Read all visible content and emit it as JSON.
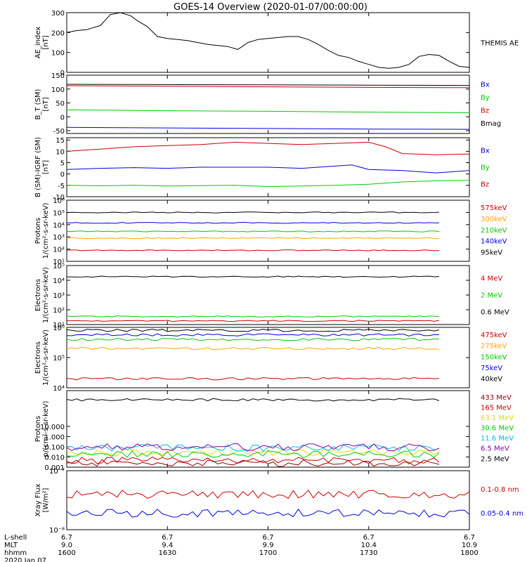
{
  "title": "GOES-14 Overview (2020-01-07/00:00:00)",
  "colors": {
    "black": "#000000",
    "red": "#cc0000",
    "green": "#00cc00",
    "blue": "#0000dd",
    "orange": "#ffa500",
    "cyan": "#00bbee",
    "yellow": "#dddd00",
    "purple": "#8800aa",
    "darkred": "#990000"
  },
  "x_axis": {
    "row_labels": [
      "L-shell",
      "MLT",
      "hhmm",
      "2020 Jan 07"
    ],
    "ticks": [
      {
        "time": "1600",
        "lshell": "6.7",
        "mlt": "9.0"
      },
      {
        "time": "1630",
        "lshell": "6.7",
        "mlt": "9.4"
      },
      {
        "time": "1700",
        "lshell": "6.7",
        "mlt": "9.9"
      },
      {
        "time": "1730",
        "lshell": "6.7",
        "mlt": "10.4"
      },
      {
        "time": "1800",
        "lshell": "6.7",
        "mlt": "10.9"
      }
    ]
  },
  "chart_data": [
    {
      "type": "line",
      "ylabel": "AE_index",
      "yunit": "[nT]",
      "ylim": [
        0,
        300
      ],
      "yticks": [
        "0",
        "100",
        "200",
        "300"
      ],
      "xlim_minutes": [
        0,
        120
      ],
      "series": [
        {
          "name": "THEMIS AE",
          "color": "black",
          "x": [
            0,
            3,
            6,
            10,
            13,
            16,
            19,
            21,
            24,
            27,
            30,
            33,
            36,
            39,
            42,
            45,
            48,
            51,
            54,
            57,
            60,
            63,
            66,
            69,
            72,
            75,
            78,
            81,
            84,
            87,
            90,
            93,
            96,
            99,
            102,
            105,
            108,
            111,
            114,
            117,
            120
          ],
          "y": [
            200,
            210,
            215,
            235,
            290,
            300,
            285,
            260,
            230,
            180,
            170,
            165,
            160,
            150,
            140,
            135,
            130,
            115,
            150,
            165,
            170,
            175,
            180,
            180,
            165,
            140,
            110,
            85,
            75,
            55,
            40,
            25,
            20,
            25,
            40,
            80,
            90,
            85,
            55,
            30,
            25
          ]
        }
      ]
    },
    {
      "type": "line",
      "ylabel": "B_T (SM)",
      "yunit": "[nT]",
      "ylim": [
        -60,
        150
      ],
      "yticks": [
        "-50",
        "0",
        "50",
        "100",
        "150"
      ],
      "series": [
        {
          "name": "Bx",
          "color": "blue",
          "x": [
            0,
            30,
            60,
            90,
            120
          ],
          "y": [
            -38,
            -40,
            -42,
            -44,
            -45
          ]
        },
        {
          "name": "By",
          "color": "green",
          "x": [
            0,
            30,
            60,
            90,
            120
          ],
          "y": [
            25,
            22,
            20,
            17,
            15
          ]
        },
        {
          "name": "Bz",
          "color": "red",
          "x": [
            0,
            30,
            60,
            90,
            120
          ],
          "y": [
            112,
            110,
            108,
            106,
            105
          ]
        },
        {
          "name": "Bmag",
          "color": "black",
          "x": [
            0,
            30,
            60,
            90,
            120
          ],
          "y": [
            117,
            116,
            115,
            114,
            113
          ]
        }
      ]
    },
    {
      "type": "line",
      "ylabel": "B (SM)-IGRF (SM)",
      "yunit": "[nT]",
      "ylim": [
        -10,
        16
      ],
      "yticks": [
        "-10",
        "-5",
        "0",
        "5",
        "10",
        "15"
      ],
      "series": [
        {
          "name": "Bx",
          "color": "blue",
          "x": [
            0,
            10,
            20,
            30,
            40,
            50,
            60,
            70,
            80,
            85,
            90,
            100,
            110,
            120
          ],
          "y": [
            2,
            2.5,
            2.8,
            2.5,
            3,
            3,
            3,
            2.5,
            3.5,
            4,
            2,
            1.5,
            0.5,
            1.5
          ]
        },
        {
          "name": "By",
          "color": "green",
          "x": [
            0,
            10,
            20,
            30,
            40,
            50,
            60,
            70,
            80,
            90,
            100,
            110,
            120
          ],
          "y": [
            -5,
            -5.2,
            -5,
            -5.3,
            -5.1,
            -5,
            -5.5,
            -5.3,
            -5,
            -4.5,
            -3.5,
            -3,
            -2.8
          ]
        },
        {
          "name": "Bz",
          "color": "red",
          "x": [
            0,
            10,
            20,
            30,
            40,
            50,
            60,
            70,
            80,
            90,
            95,
            100,
            110,
            120
          ],
          "y": [
            10,
            11,
            12,
            12.5,
            13,
            14,
            13.5,
            13,
            13.5,
            14,
            12,
            9,
            8.5,
            8.8
          ]
        }
      ]
    },
    {
      "type": "line",
      "ylabel": "Protons",
      "yunit": "1/(cm²-s-sr-keV)",
      "scale": "log",
      "ylim_exp": [
        1,
        6
      ],
      "yticks": [
        "10¹",
        "10²",
        "10³",
        "10⁴",
        "10⁵",
        "10⁶"
      ],
      "series": [
        {
          "name": "575keV",
          "color": "red",
          "y_log_level": 1.9
        },
        {
          "name": "300keV",
          "color": "orange",
          "y_log_level": 2.9
        },
        {
          "name": "210keV",
          "color": "green",
          "y_log_level": 3.45
        },
        {
          "name": "140keV",
          "color": "blue",
          "y_log_level": 4.15
        },
        {
          "name": "95keV",
          "color": "black",
          "y_log_level": 5.0
        }
      ]
    },
    {
      "type": "line",
      "ylabel": "Electrons",
      "yunit": "1/(cm²-s-sr-keV)",
      "scale": "log",
      "ylim_exp": [
        1,
        5
      ],
      "yticks": [
        "10¹",
        "10²",
        "10³",
        "10⁴",
        "10⁵"
      ],
      "series": [
        {
          "name": "4 MeV",
          "color": "red",
          "y_log_level": 1.25
        },
        {
          "name": "2 MeV",
          "color": "green",
          "y_log_level": 1.55
        },
        {
          "name": "0.6 MeV",
          "color": "black",
          "y_log_level": 4.25
        }
      ]
    },
    {
      "type": "line",
      "ylabel": "Electrons",
      "yunit": "1/(cm²-s-sr-keV)",
      "scale": "log",
      "ylim_exp": [
        4,
        6
      ],
      "yticks": [
        "10⁴",
        "10⁵",
        "10⁶"
      ],
      "series": [
        {
          "name": "475keV",
          "color": "red",
          "y_log_level": 4.3
        },
        {
          "name": "275keV",
          "color": "orange",
          "y_log_level": 5.3
        },
        {
          "name": "150keV",
          "color": "green",
          "y_log_level": 5.6
        },
        {
          "name": "75keV",
          "color": "blue",
          "y_log_level": 5.75
        },
        {
          "name": "40keV",
          "color": "black",
          "y_log_level": 5.9
        }
      ]
    },
    {
      "type": "line",
      "ylabel": "Protons",
      "yunit": "p/(cm²-s-sr-keV)",
      "scale": "log",
      "ylim_exp": [
        -3,
        4.5
      ],
      "yticks": [
        "0.001",
        "0.010",
        "0.100",
        "1.000",
        "10.000"
      ],
      "series": [
        {
          "name": "433 MeV",
          "color": "darkred",
          "y_log_level": -2.6
        },
        {
          "name": "165 MeV",
          "color": "red",
          "y_log_level": -2.35
        },
        {
          "name": "63.1 MeV",
          "color": "yellow",
          "y_log_level": -1.6
        },
        {
          "name": "30.6 MeV",
          "color": "green",
          "y_log_level": -1.75
        },
        {
          "name": "11.6 MeV",
          "color": "cyan",
          "y_log_level": -1.1
        },
        {
          "name": "6.5 MeV",
          "color": "purple",
          "y_log_level": -1.05
        },
        {
          "name": "2.5 MeV",
          "color": "black",
          "y_log_level": 3.6
        }
      ]
    },
    {
      "type": "line",
      "ylabel": "Xray Flux",
      "yunit": "[W/m²]",
      "scale": "log",
      "ylim_exp": [
        -8,
        -7
      ],
      "yticks": [
        "10⁻⁸",
        "10⁻⁷"
      ],
      "series": [
        {
          "name": "0.1-0.8 nm",
          "color": "red",
          "y_log_level": -7.4
        },
        {
          "name": "0.05-0.4 nm",
          "color": "blue",
          "y_log_level": -7.72
        }
      ]
    }
  ]
}
